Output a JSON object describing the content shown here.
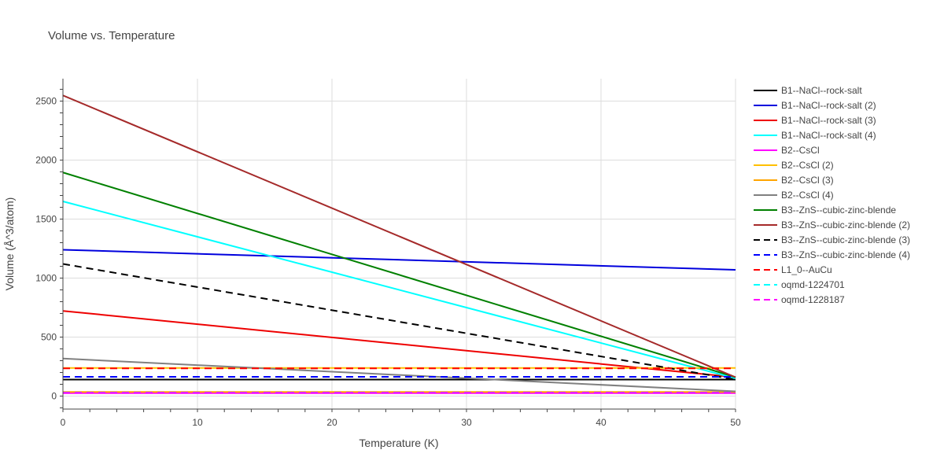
{
  "chart_data": {
    "type": "line",
    "title": "Volume vs. Temperature",
    "xlabel": "Temperature (K)",
    "ylabel": "Volume (Å^3/atom)",
    "xlim": [
      0,
      50
    ],
    "ylim": [
      -110,
      2690
    ],
    "xticks": [
      0,
      10,
      20,
      30,
      40,
      50
    ],
    "yticks": [
      0,
      500,
      1000,
      1500,
      2000,
      2500
    ],
    "grid": true,
    "legend_position": "right",
    "series": [
      {
        "name": "B1--NaCl--rock-salt",
        "color": "#000000",
        "dash": "solid",
        "x": [
          0,
          50
        ],
        "y": [
          140,
          140
        ]
      },
      {
        "name": "B1--NaCl--rock-salt (2)",
        "color": "#0000dd",
        "dash": "solid",
        "x": [
          0,
          50
        ],
        "y": [
          1240,
          1070
        ]
      },
      {
        "name": "B1--NaCl--rock-salt (3)",
        "color": "#ee0000",
        "dash": "solid",
        "x": [
          0,
          50
        ],
        "y": [
          722,
          160
        ]
      },
      {
        "name": "B1--NaCl--rock-salt (4)",
        "color": "#00ffff",
        "dash": "solid",
        "x": [
          0,
          50
        ],
        "y": [
          1650,
          150
        ]
      },
      {
        "name": "B2--CsCl",
        "color": "#ff00ff",
        "dash": "solid",
        "x": [
          0,
          50
        ],
        "y": [
          25,
          25
        ]
      },
      {
        "name": "B2--CsCl (2)",
        "color": "#ffc000",
        "dash": "solid",
        "x": [
          0,
          50
        ],
        "y": [
          238,
          238
        ]
      },
      {
        "name": "B2--CsCl (3)",
        "color": "#ffa500",
        "dash": "solid",
        "x": [
          0,
          50
        ],
        "y": [
          35,
          35
        ]
      },
      {
        "name": "B2--CsCl (4)",
        "color": "#808080",
        "dash": "solid",
        "x": [
          0,
          50
        ],
        "y": [
          318,
          40
        ]
      },
      {
        "name": "B3--ZnS--cubic-zinc-blende",
        "color": "#008000",
        "dash": "solid",
        "x": [
          0,
          50
        ],
        "y": [
          1895,
          160
        ]
      },
      {
        "name": "B3--ZnS--cubic-zinc-blende (2)",
        "color": "#a52a2a",
        "dash": "solid",
        "x": [
          0,
          50
        ],
        "y": [
          2548,
          160
        ]
      },
      {
        "name": "B3--ZnS--cubic-zinc-blende (3)",
        "color": "#000000",
        "dash": "dash",
        "x": [
          0,
          50
        ],
        "y": [
          1120,
          140
        ]
      },
      {
        "name": "B3--ZnS--cubic-zinc-blende (4)",
        "color": "#0000ff",
        "dash": "dash",
        "x": [
          0,
          50
        ],
        "y": [
          163,
          163
        ]
      },
      {
        "name": "L1_0--AuCu",
        "color": "#ff0000",
        "dash": "dash",
        "x": [
          0,
          50
        ],
        "y": [
          235,
          235
        ]
      },
      {
        "name": "oqmd-1224701",
        "color": "#00ffff",
        "dash": "dash",
        "x": [
          0,
          50
        ],
        "y": [
          30,
          30
        ]
      },
      {
        "name": "oqmd-1228187",
        "color": "#ff00ff",
        "dash": "dash",
        "x": [
          0,
          50
        ],
        "y": [
          28,
          28
        ]
      }
    ]
  }
}
